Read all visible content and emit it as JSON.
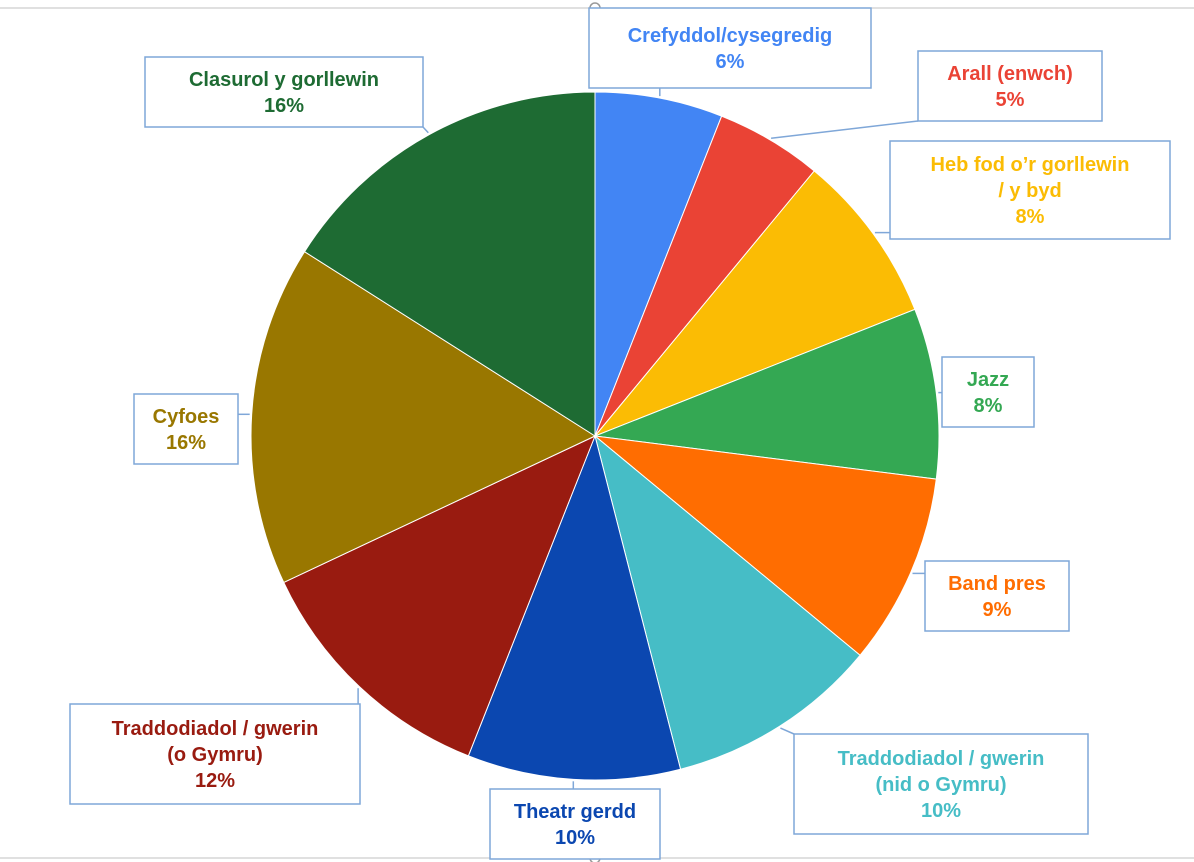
{
  "chart_data": {
    "type": "pie",
    "slices": [
      {
        "label": "Crefyddol/cysegredig",
        "value": 6,
        "display": "6%",
        "color": "#4285f4"
      },
      {
        "label": "Arall (enwch)",
        "value": 5,
        "display": "5%",
        "color": "#ea4335"
      },
      {
        "label": "Heb fod o'r gorllewin / y byd",
        "label_lines": [
          "Heb fod o’r gorllewin",
          "/ y byd"
        ],
        "value": 8,
        "display": "8%",
        "color": "#fbbc04"
      },
      {
        "label": "Jazz",
        "value": 8,
        "display": "8%",
        "color": "#34a853"
      },
      {
        "label": "Band pres",
        "value": 9,
        "display": "9%",
        "color": "#ff6d01"
      },
      {
        "label": "Traddodiadol / gwerin (nid o Gymru)",
        "label_lines": [
          "Traddodiadol / gwerin",
          "(nid o Gymru)"
        ],
        "value": 10,
        "display": "10%",
        "color": "#46bdc6"
      },
      {
        "label": "Theatr gerdd",
        "value": 10,
        "display": "10%",
        "color": "#0b47b0"
      },
      {
        "label": "Traddodiadol / gwerin (o Gymru)",
        "label_lines": [
          "Traddodiadol / gwerin",
          "(o Gymru)"
        ],
        "value": 12,
        "display": "12%",
        "color": "#991b10"
      },
      {
        "label": "Cyfoes",
        "value": 16,
        "display": "16%",
        "color": "#997700"
      },
      {
        "label": "Clasurol y gorllewin",
        "value": 16,
        "display": "16%",
        "color": "#1e6b33"
      }
    ],
    "start_angle_deg": 0,
    "direction": "clockwise",
    "legend": "none",
    "data_labels": "callouts"
  },
  "colors": {
    "callout_border": "#7fa7d8",
    "frame_line": "#c0c0c0"
  }
}
